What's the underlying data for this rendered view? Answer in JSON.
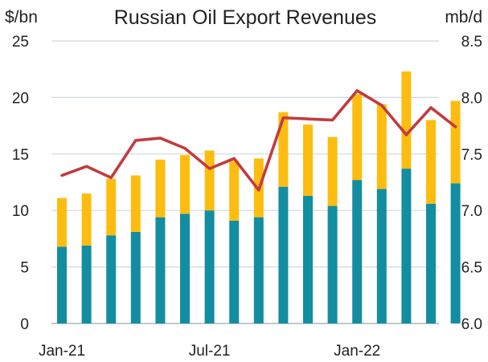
{
  "chart_data": {
    "type": "bar",
    "title": "Russian Oil Export Revenues",
    "y_left_unit": "$/bn",
    "y_right_unit": "mb/d",
    "ylim_left": [
      0,
      25
    ],
    "yticks_left": [
      "0",
      "5",
      "10",
      "15",
      "20",
      "25"
    ],
    "ylim_right": [
      6.0,
      8.5
    ],
    "yticks_right": [
      "6.0",
      "6.5",
      "7.0",
      "7.5",
      "8.0",
      "8.5"
    ],
    "categories": [
      "Jan-21",
      "Feb-21",
      "Mar-21",
      "Apr-21",
      "May-21",
      "Jun-21",
      "Jul-21",
      "Aug-21",
      "Sep-21",
      "Oct-21",
      "Nov-21",
      "Dec-21",
      "Jan-22",
      "Feb-22",
      "Mar-22",
      "Apr-22",
      "May-22"
    ],
    "x_tick_labels": [
      {
        "label": "Jan-21",
        "index": 0
      },
      {
        "label": "Jul-21",
        "index": 6
      },
      {
        "label": "Jan-22",
        "index": 12
      }
    ],
    "grid": true,
    "stacked": true,
    "series": [
      {
        "values": [
          6.8,
          6.9,
          7.8,
          8.1,
          9.4,
          9.7,
          10.0,
          9.1,
          9.4,
          12.1,
          11.3,
          10.4,
          12.7,
          11.9,
          13.7,
          10.6,
          12.4
        ],
        "color": "#138da0",
        "axis": "left",
        "kind": "bar"
      },
      {
        "values": [
          4.3,
          4.6,
          5.0,
          5.0,
          5.1,
          5.2,
          5.3,
          5.3,
          5.2,
          6.6,
          6.3,
          6.1,
          7.6,
          7.5,
          8.6,
          7.4,
          7.3
        ],
        "color": "#fdbd10",
        "axis": "left",
        "kind": "bar"
      },
      {
        "values": [
          7.31,
          7.39,
          7.29,
          7.62,
          7.64,
          7.55,
          7.37,
          7.46,
          7.18,
          7.82,
          7.81,
          7.8,
          8.06,
          7.93,
          7.67,
          7.91,
          7.74
        ],
        "color": "#c23b3f",
        "axis": "right",
        "kind": "line"
      }
    ],
    "colors": {
      "bar_bottom": "#138da0",
      "bar_top": "#fdbd10",
      "line": "#c23b3f",
      "grid": "#cfd8e2"
    }
  }
}
